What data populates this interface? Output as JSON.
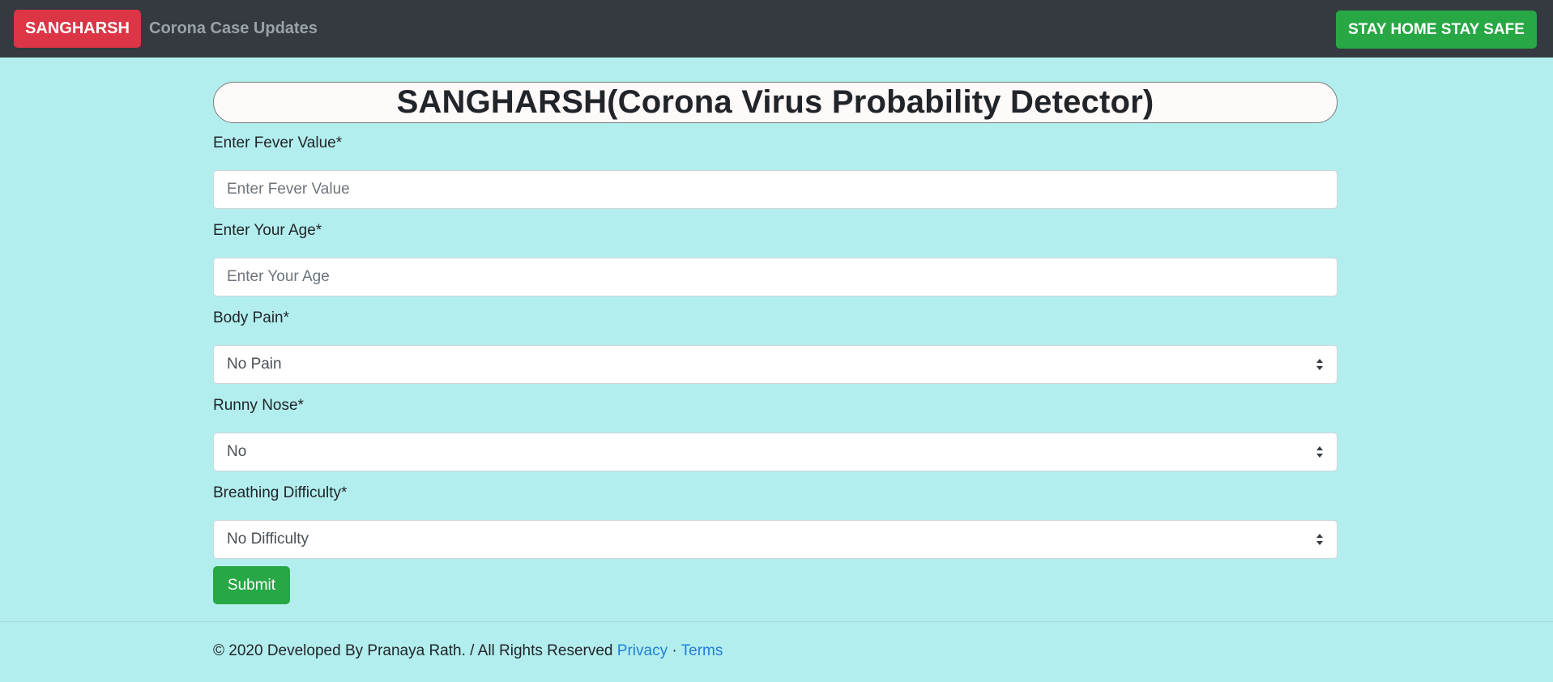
{
  "navbar": {
    "brand_label": "SANGHARSH",
    "link_label": "Corona Case Updates",
    "safe_button_label": "STAY HOME STAY SAFE"
  },
  "main": {
    "title": "SANGHARSH(Corona Virus Probability Detector)",
    "fever": {
      "label": "Enter Fever Value*",
      "placeholder": "Enter Fever Value"
    },
    "age": {
      "label": "Enter Your Age*",
      "placeholder": "Enter Your Age"
    },
    "body_pain": {
      "label": "Body Pain*",
      "selected": "No Pain"
    },
    "runny_nose": {
      "label": "Runny Nose*",
      "selected": "No"
    },
    "breathing": {
      "label": "Breathing Difficulty*",
      "selected": "No Difficulty"
    },
    "submit_label": "Submit"
  },
  "footer": {
    "copyright": "© 2020 Developed By Pranaya Rath. / All Rights Reserved",
    "privacy_label": "Privacy",
    "separator": "·",
    "terms_label": "Terms"
  },
  "colors": {
    "background": "#b3eeee",
    "navbar": "#343a40",
    "brand": "#dc3545",
    "success": "#28a745",
    "link": "#1f7fd6"
  },
  "icons": {
    "select_arrow": "select-arrows-icon"
  }
}
